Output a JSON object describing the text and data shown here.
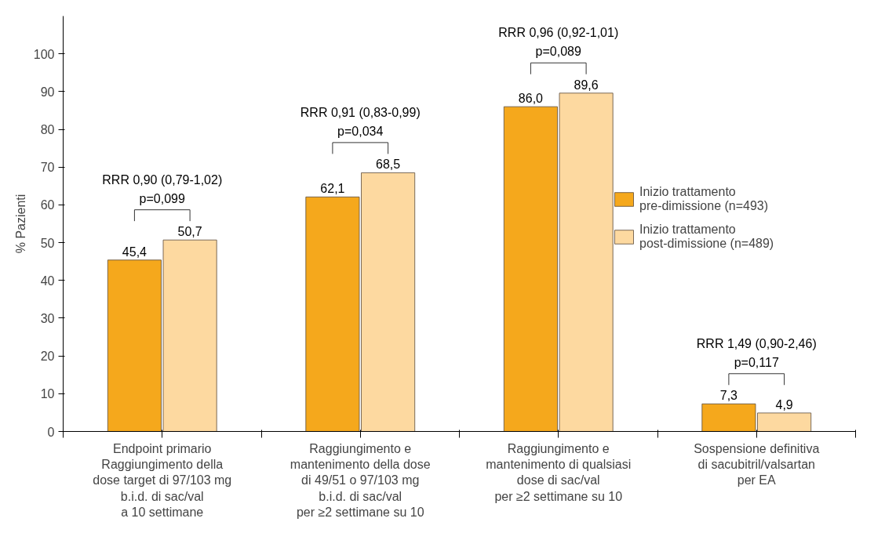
{
  "chart_data": {
    "type": "bar",
    "ylabel": "% Pazienti",
    "categories": [
      "Endpoint primario\nRaggiungimento della\ndose target di 97/103 mg\nb.i.d. di sac/val\na 10 settimane",
      "Raggiungimento e\nmantenimento della dose\ndi 49/51 o 97/103 mg\nb.i.d. di sac/val\nper ≥2 settimane su 10",
      "Raggiungimento e\nmantenimento di qualsiasi\ndose di sac/val\nper ≥2 settimane su 10",
      "Sospensione definitiva\ndi sacubitril/valsartan\nper EA"
    ],
    "series": [
      {
        "name": "Inizio trattamento\npre-dimissione (n=493)",
        "color": "#f5a81c",
        "values": [
          45.4,
          62.1,
          86.0,
          7.3
        ],
        "value_labels": [
          "45,4",
          "62,1",
          "86,0",
          "7,3"
        ]
      },
      {
        "name": "Inizio trattamento\npost-dimissione (n=489)",
        "color": "#fdd9a0",
        "values": [
          50.7,
          68.5,
          89.6,
          4.9
        ],
        "value_labels": [
          "50,7",
          "68,5",
          "89,6",
          "4,9"
        ]
      }
    ],
    "annotations": [
      "RRR 0,90 (0,79-1,02)\np=0,099",
      "RRR 0,91 (0,83-0,99)\np=0,034",
      "RRR 0,96 (0,92-1,01)\np=0,089",
      "RRR 1,49 (0,90-2,46)\np=0,117"
    ],
    "ylim": [
      0,
      110
    ],
    "yticks": [
      0,
      10,
      20,
      30,
      40,
      50,
      60,
      70,
      80,
      90,
      100
    ],
    "grid": false,
    "legend": "right"
  }
}
